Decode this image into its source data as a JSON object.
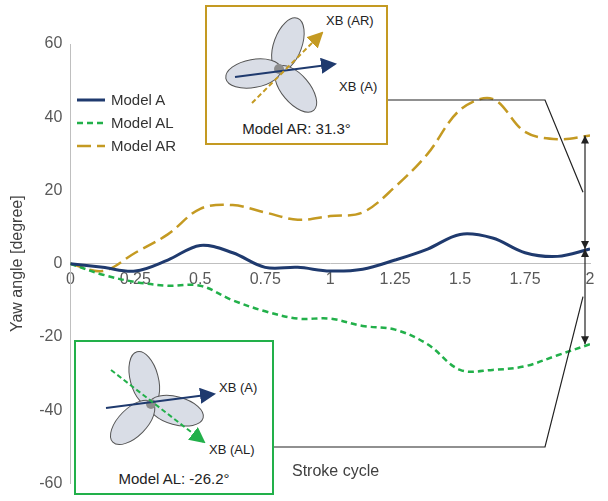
{
  "chart_data": {
    "type": "line",
    "x_label": "Stroke cycle",
    "y_label": "Yaw angle [degree]",
    "x": [
      0,
      0.125,
      0.25,
      0.375,
      0.5,
      0.625,
      0.75,
      0.875,
      1,
      1.125,
      1.25,
      1.375,
      1.5,
      1.625,
      1.75,
      1.875,
      2
    ],
    "series": [
      {
        "name": "Model A",
        "color": "#1f3a6e",
        "line_style": "solid",
        "marker": "none",
        "values": [
          0,
          -1,
          -2,
          1,
          5,
          3,
          -1,
          -1,
          -2,
          -1.5,
          1,
          4,
          8,
          7,
          3,
          2,
          4
        ]
      },
      {
        "name": "Model AL",
        "color": "#22b04a",
        "line_style": "dashed",
        "marker": "none",
        "values": [
          0,
          -3,
          -5,
          -6,
          -6,
          -10,
          -13,
          -15,
          -15,
          -17,
          -18,
          -22,
          -29,
          -29,
          -28,
          -25,
          -22
        ]
      },
      {
        "name": "Model AR",
        "color": "#c49a22",
        "line_style": "longdash",
        "marker": "none",
        "values": [
          0,
          -2,
          3,
          8,
          15,
          16,
          14,
          12,
          13,
          14,
          21,
          30,
          42,
          45,
          36,
          34,
          35
        ]
      }
    ],
    "xlim": [
      0,
      2
    ],
    "xticks": [
      0,
      0.25,
      0.5,
      0.75,
      1,
      1.25,
      1.5,
      1.75,
      2
    ],
    "ylim": [
      -60,
      60
    ],
    "yticks": [
      -60,
      -40,
      -20,
      0,
      20,
      40,
      60
    ],
    "grid": false,
    "legend": "top-left",
    "annotations": [
      {
        "text": "Model AR: 31.3°",
        "series": "Model AR",
        "reference_label": "XB (A)",
        "rotated_label": "XB (AR)"
      },
      {
        "text": "Model AL: -26.2°",
        "series": "Model AL",
        "reference_label": "XB (A)",
        "rotated_label": "XB (AL)"
      }
    ]
  }
}
